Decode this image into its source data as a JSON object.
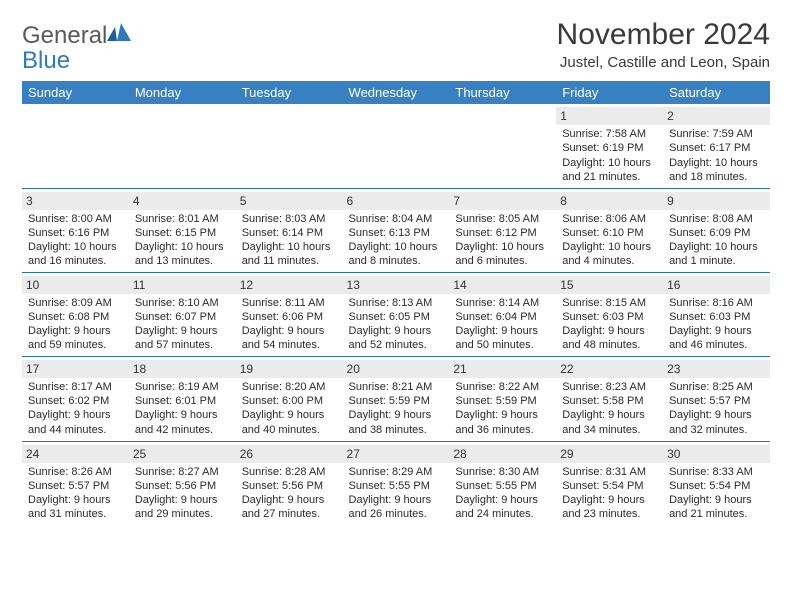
{
  "logo": {
    "word1": "General",
    "word2": "Blue"
  },
  "title": "November 2024",
  "location": "Justel, Castille and Leon, Spain",
  "colors": {
    "header_bg": "#3781c2",
    "header_text": "#ffffff",
    "row_border": "#2f6fa8",
    "daynum_bg": "#ebebeb",
    "text": "#2b2b2b",
    "logo_gray": "#5a5a5a",
    "logo_blue": "#2f7abf"
  },
  "typography": {
    "title_size": 30,
    "location_size": 15,
    "day_header_size": 13,
    "body_size": 11
  },
  "day_headers": [
    "Sunday",
    "Monday",
    "Tuesday",
    "Wednesday",
    "Thursday",
    "Friday",
    "Saturday"
  ],
  "weeks": [
    [
      null,
      null,
      null,
      null,
      null,
      {
        "n": "1",
        "sr": "Sunrise: 7:58 AM",
        "ss": "Sunset: 6:19 PM",
        "d1": "Daylight: 10 hours",
        "d2": "and 21 minutes."
      },
      {
        "n": "2",
        "sr": "Sunrise: 7:59 AM",
        "ss": "Sunset: 6:17 PM",
        "d1": "Daylight: 10 hours",
        "d2": "and 18 minutes."
      }
    ],
    [
      {
        "n": "3",
        "sr": "Sunrise: 8:00 AM",
        "ss": "Sunset: 6:16 PM",
        "d1": "Daylight: 10 hours",
        "d2": "and 16 minutes."
      },
      {
        "n": "4",
        "sr": "Sunrise: 8:01 AM",
        "ss": "Sunset: 6:15 PM",
        "d1": "Daylight: 10 hours",
        "d2": "and 13 minutes."
      },
      {
        "n": "5",
        "sr": "Sunrise: 8:03 AM",
        "ss": "Sunset: 6:14 PM",
        "d1": "Daylight: 10 hours",
        "d2": "and 11 minutes."
      },
      {
        "n": "6",
        "sr": "Sunrise: 8:04 AM",
        "ss": "Sunset: 6:13 PM",
        "d1": "Daylight: 10 hours",
        "d2": "and 8 minutes."
      },
      {
        "n": "7",
        "sr": "Sunrise: 8:05 AM",
        "ss": "Sunset: 6:12 PM",
        "d1": "Daylight: 10 hours",
        "d2": "and 6 minutes."
      },
      {
        "n": "8",
        "sr": "Sunrise: 8:06 AM",
        "ss": "Sunset: 6:10 PM",
        "d1": "Daylight: 10 hours",
        "d2": "and 4 minutes."
      },
      {
        "n": "9",
        "sr": "Sunrise: 8:08 AM",
        "ss": "Sunset: 6:09 PM",
        "d1": "Daylight: 10 hours",
        "d2": "and 1 minute."
      }
    ],
    [
      {
        "n": "10",
        "sr": "Sunrise: 8:09 AM",
        "ss": "Sunset: 6:08 PM",
        "d1": "Daylight: 9 hours",
        "d2": "and 59 minutes."
      },
      {
        "n": "11",
        "sr": "Sunrise: 8:10 AM",
        "ss": "Sunset: 6:07 PM",
        "d1": "Daylight: 9 hours",
        "d2": "and 57 minutes."
      },
      {
        "n": "12",
        "sr": "Sunrise: 8:11 AM",
        "ss": "Sunset: 6:06 PM",
        "d1": "Daylight: 9 hours",
        "d2": "and 54 minutes."
      },
      {
        "n": "13",
        "sr": "Sunrise: 8:13 AM",
        "ss": "Sunset: 6:05 PM",
        "d1": "Daylight: 9 hours",
        "d2": "and 52 minutes."
      },
      {
        "n": "14",
        "sr": "Sunrise: 8:14 AM",
        "ss": "Sunset: 6:04 PM",
        "d1": "Daylight: 9 hours",
        "d2": "and 50 minutes."
      },
      {
        "n": "15",
        "sr": "Sunrise: 8:15 AM",
        "ss": "Sunset: 6:03 PM",
        "d1": "Daylight: 9 hours",
        "d2": "and 48 minutes."
      },
      {
        "n": "16",
        "sr": "Sunrise: 8:16 AM",
        "ss": "Sunset: 6:03 PM",
        "d1": "Daylight: 9 hours",
        "d2": "and 46 minutes."
      }
    ],
    [
      {
        "n": "17",
        "sr": "Sunrise: 8:17 AM",
        "ss": "Sunset: 6:02 PM",
        "d1": "Daylight: 9 hours",
        "d2": "and 44 minutes."
      },
      {
        "n": "18",
        "sr": "Sunrise: 8:19 AM",
        "ss": "Sunset: 6:01 PM",
        "d1": "Daylight: 9 hours",
        "d2": "and 42 minutes."
      },
      {
        "n": "19",
        "sr": "Sunrise: 8:20 AM",
        "ss": "Sunset: 6:00 PM",
        "d1": "Daylight: 9 hours",
        "d2": "and 40 minutes."
      },
      {
        "n": "20",
        "sr": "Sunrise: 8:21 AM",
        "ss": "Sunset: 5:59 PM",
        "d1": "Daylight: 9 hours",
        "d2": "and 38 minutes."
      },
      {
        "n": "21",
        "sr": "Sunrise: 8:22 AM",
        "ss": "Sunset: 5:59 PM",
        "d1": "Daylight: 9 hours",
        "d2": "and 36 minutes."
      },
      {
        "n": "22",
        "sr": "Sunrise: 8:23 AM",
        "ss": "Sunset: 5:58 PM",
        "d1": "Daylight: 9 hours",
        "d2": "and 34 minutes."
      },
      {
        "n": "23",
        "sr": "Sunrise: 8:25 AM",
        "ss": "Sunset: 5:57 PM",
        "d1": "Daylight: 9 hours",
        "d2": "and 32 minutes."
      }
    ],
    [
      {
        "n": "24",
        "sr": "Sunrise: 8:26 AM",
        "ss": "Sunset: 5:57 PM",
        "d1": "Daylight: 9 hours",
        "d2": "and 31 minutes."
      },
      {
        "n": "25",
        "sr": "Sunrise: 8:27 AM",
        "ss": "Sunset: 5:56 PM",
        "d1": "Daylight: 9 hours",
        "d2": "and 29 minutes."
      },
      {
        "n": "26",
        "sr": "Sunrise: 8:28 AM",
        "ss": "Sunset: 5:56 PM",
        "d1": "Daylight: 9 hours",
        "d2": "and 27 minutes."
      },
      {
        "n": "27",
        "sr": "Sunrise: 8:29 AM",
        "ss": "Sunset: 5:55 PM",
        "d1": "Daylight: 9 hours",
        "d2": "and 26 minutes."
      },
      {
        "n": "28",
        "sr": "Sunrise: 8:30 AM",
        "ss": "Sunset: 5:55 PM",
        "d1": "Daylight: 9 hours",
        "d2": "and 24 minutes."
      },
      {
        "n": "29",
        "sr": "Sunrise: 8:31 AM",
        "ss": "Sunset: 5:54 PM",
        "d1": "Daylight: 9 hours",
        "d2": "and 23 minutes."
      },
      {
        "n": "30",
        "sr": "Sunrise: 8:33 AM",
        "ss": "Sunset: 5:54 PM",
        "d1": "Daylight: 9 hours",
        "d2": "and 21 minutes."
      }
    ]
  ]
}
